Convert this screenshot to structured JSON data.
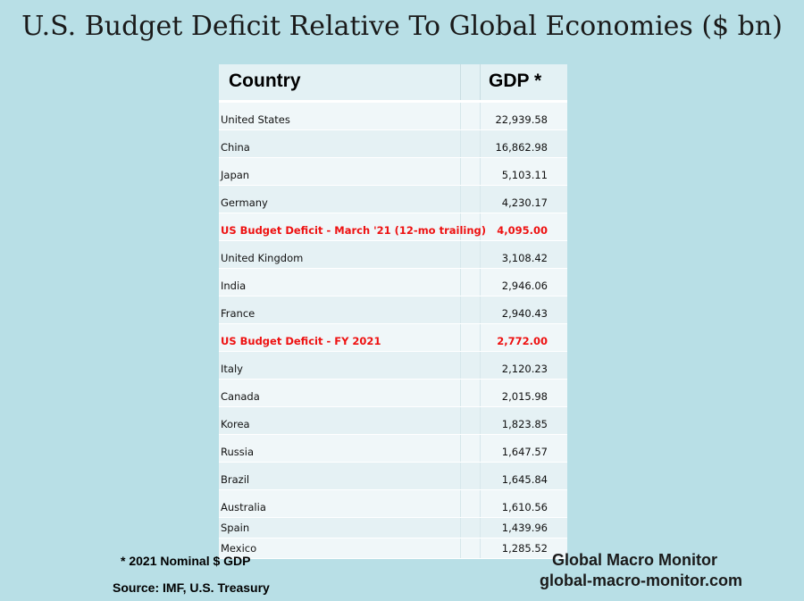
{
  "title": "U.S. Budget Deficit Relative To Global Economies ($ bn)",
  "table": {
    "headers": {
      "country": "Country",
      "gdp": "GDP *"
    }
  },
  "chart_data": {
    "type": "table",
    "title": "U.S. Budget Deficit Relative To Global Economies ($ bn)",
    "columns": [
      "Country",
      "GDP *"
    ],
    "rows": [
      {
        "country": "United States",
        "value": "22,939.58",
        "highlight": false
      },
      {
        "country": "China",
        "value": "16,862.98",
        "highlight": false
      },
      {
        "country": "Japan",
        "value": "5,103.11",
        "highlight": false
      },
      {
        "country": "Germany",
        "value": "4,230.17",
        "highlight": false
      },
      {
        "country": "US Budget Deficit - March '21 (12-mo trailing)",
        "value": "4,095.00",
        "highlight": true
      },
      {
        "country": "United Kingdom",
        "value": "3,108.42",
        "highlight": false
      },
      {
        "country": "India",
        "value": "2,946.06",
        "highlight": false
      },
      {
        "country": "France",
        "value": "2,940.43",
        "highlight": false
      },
      {
        "country": "US Budget Deficit - FY 2021",
        "value": "2,772.00",
        "highlight": true
      },
      {
        "country": "Italy",
        "value": "2,120.23",
        "highlight": false
      },
      {
        "country": "Canada",
        "value": "2,015.98",
        "highlight": false
      },
      {
        "country": "Korea",
        "value": "1,823.85",
        "highlight": false
      },
      {
        "country": "Russia",
        "value": "1,647.57",
        "highlight": false
      },
      {
        "country": "Brazil",
        "value": "1,645.84",
        "highlight": false
      },
      {
        "country": "Australia",
        "value": "1,610.56",
        "highlight": false
      },
      {
        "country": "Spain",
        "value": "1,439.96",
        "highlight": false
      },
      {
        "country": "Mexico",
        "value": "1,285.52",
        "highlight": false
      }
    ],
    "highlight_color": "#ee1111"
  },
  "footnote": "* 2021 Nominal $ GDP",
  "source": "Source: IMF, U.S. Treasury",
  "brand": {
    "name": "Global Macro Monitor",
    "site": "global-macro-monitor.com"
  },
  "colors": {
    "background": "#b8dfe6",
    "highlight": "#ee1111"
  }
}
